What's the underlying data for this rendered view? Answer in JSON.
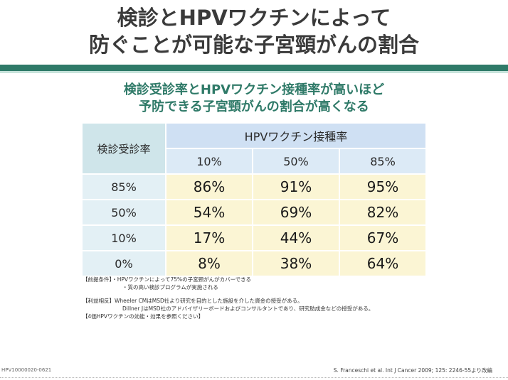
{
  "title": {
    "line1": "検診とHPVワクチンによって",
    "line2": "防ぐことが可能な子宮頸がんの割合"
  },
  "subtitle": {
    "line1": "検診受診率とHPVワクチン接種率が高いほど",
    "line2": "予防できる子宮頸がんの割合が高くなる"
  },
  "table": {
    "row_header_label": "検診受診率",
    "col_group_label": "HPVワクチン接種率",
    "columns": [
      "10%",
      "50%",
      "85%"
    ],
    "rows": [
      {
        "label": "85%",
        "values": [
          "86%",
          "91%",
          "95%"
        ]
      },
      {
        "label": "50%",
        "values": [
          "54%",
          "69%",
          "82%"
        ]
      },
      {
        "label": "10%",
        "values": [
          "17%",
          "44%",
          "67%"
        ]
      },
      {
        "label": "0%",
        "values": [
          "8%",
          "38%",
          "64%"
        ]
      }
    ]
  },
  "notes": {
    "premise_label": "【前提条件】",
    "premise_1": "・HPVワクチンによって75%の子宮頸がんがカバーできる",
    "premise_2": "・質の高い検診プログラムが実施される",
    "coi_label": "【利益相反】",
    "coi_1": "Wheeler CMはMSD社より研究を目的とした施設を介した資金の授受がある。",
    "coi_2": "Dillner JはMSD社のアドバイザリーボードおよびコンサルタントであり、研究助成金などの授受がある。",
    "reference": "【4価HPVワクチンの効能・効果を参照ください】"
  },
  "footer": {
    "left": "HPV10000020-0621",
    "right": "S. Franceschi et al. Int J Cancer 2009; 125: 2246-55より改編"
  },
  "colors": {
    "accent_green": "#2f7a68",
    "header_blue": "#cfe0f3",
    "row_label_teal": "#cfe5ea",
    "cell_yellow": "#fbf5d4"
  }
}
